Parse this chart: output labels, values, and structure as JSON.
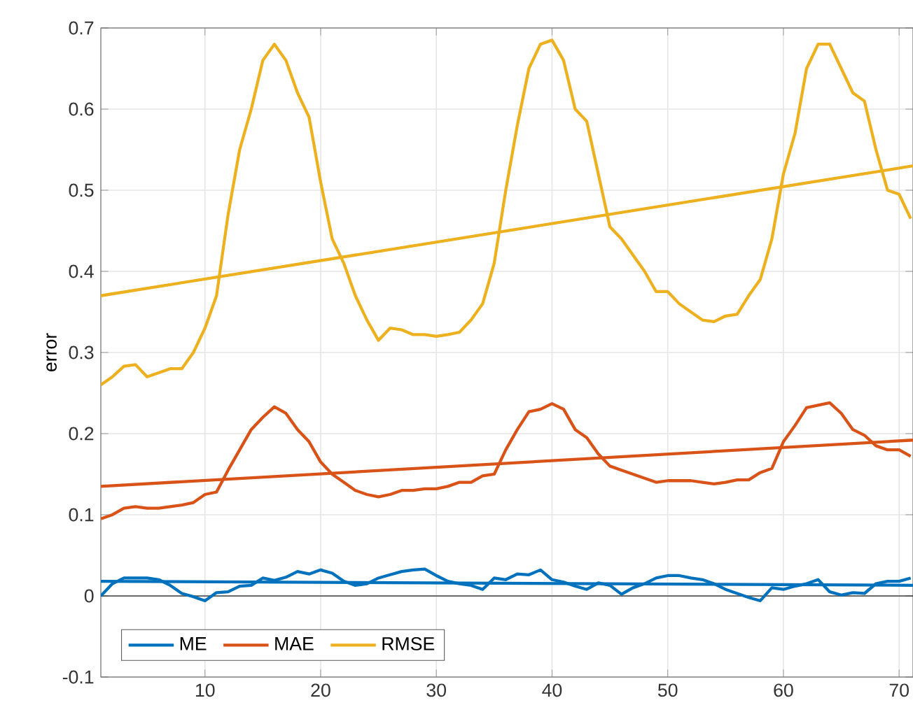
{
  "chart_data": {
    "type": "line",
    "ylabel": "error",
    "xlim": [
      1,
      71.2
    ],
    "ylim": [
      -0.1,
      0.7
    ],
    "xticks": [
      10,
      20,
      30,
      40,
      50,
      60,
      70
    ],
    "yticks": [
      -0.1,
      0,
      0.1,
      0.2,
      0.3,
      0.4,
      0.5,
      0.6,
      0.7
    ],
    "grid": true,
    "legend": "bottom left",
    "marker": "none",
    "line_style": "solid",
    "ref_lines": [
      {
        "axis": "y",
        "value": 0,
        "color": "#262626"
      }
    ],
    "series": [
      {
        "name": "ME",
        "color": "#0072bd",
        "x": [
          1,
          2,
          3,
          4,
          5,
          6,
          7,
          8,
          9,
          10,
          11,
          12,
          13,
          14,
          15,
          16,
          17,
          18,
          19,
          20,
          21,
          22,
          23,
          24,
          25,
          26,
          27,
          28,
          29,
          30,
          31,
          32,
          33,
          34,
          35,
          36,
          37,
          38,
          39,
          40,
          41,
          42,
          43,
          44,
          45,
          46,
          47,
          48,
          49,
          50,
          51,
          52,
          53,
          54,
          55,
          56,
          57,
          58,
          59,
          60,
          61,
          62,
          63,
          64,
          65,
          66,
          67,
          68,
          69,
          70,
          71
        ],
        "values": [
          0.0,
          0.015,
          0.022,
          0.022,
          0.022,
          0.02,
          0.013,
          0.003,
          -0.001,
          -0.006,
          0.004,
          0.005,
          0.012,
          0.013,
          0.022,
          0.019,
          0.023,
          0.03,
          0.027,
          0.032,
          0.028,
          0.018,
          0.013,
          0.015,
          0.022,
          0.026,
          0.03,
          0.032,
          0.033,
          0.025,
          0.018,
          0.015,
          0.013,
          0.008,
          0.022,
          0.02,
          0.027,
          0.026,
          0.032,
          0.02,
          0.017,
          0.012,
          0.008,
          0.016,
          0.013,
          0.002,
          0.01,
          0.015,
          0.022,
          0.025,
          0.025,
          0.022,
          0.02,
          0.015,
          0.008,
          0.003,
          -0.002,
          -0.006,
          0.01,
          0.008,
          0.012,
          0.015,
          0.02,
          0.005,
          0.001,
          0.004,
          0.003,
          0.015,
          0.018,
          0.018,
          0.022
        ]
      },
      {
        "name": "MAE",
        "color": "#d95319",
        "x": [
          1,
          2,
          3,
          4,
          5,
          6,
          7,
          8,
          9,
          10,
          11,
          12,
          13,
          14,
          15,
          16,
          17,
          18,
          19,
          20,
          21,
          22,
          23,
          24,
          25,
          26,
          27,
          28,
          29,
          30,
          31,
          32,
          33,
          34,
          35,
          36,
          37,
          38,
          39,
          40,
          41,
          42,
          43,
          44,
          45,
          46,
          47,
          48,
          49,
          50,
          51,
          52,
          53,
          54,
          55,
          56,
          57,
          58,
          59,
          60,
          61,
          62,
          63,
          64,
          65,
          66,
          67,
          68,
          69,
          70,
          71
        ],
        "values": [
          0.095,
          0.1,
          0.108,
          0.11,
          0.108,
          0.108,
          0.11,
          0.112,
          0.115,
          0.125,
          0.128,
          0.155,
          0.18,
          0.205,
          0.22,
          0.233,
          0.225,
          0.205,
          0.19,
          0.165,
          0.15,
          0.14,
          0.13,
          0.125,
          0.122,
          0.125,
          0.13,
          0.13,
          0.132,
          0.132,
          0.135,
          0.14,
          0.14,
          0.148,
          0.15,
          0.18,
          0.205,
          0.227,
          0.23,
          0.237,
          0.23,
          0.205,
          0.195,
          0.175,
          0.16,
          0.155,
          0.15,
          0.145,
          0.14,
          0.142,
          0.142,
          0.142,
          0.14,
          0.138,
          0.14,
          0.143,
          0.143,
          0.152,
          0.157,
          0.19,
          0.21,
          0.232,
          0.235,
          0.238,
          0.225,
          0.205,
          0.198,
          0.185,
          0.18,
          0.18,
          0.172
        ]
      },
      {
        "name": "RMSE",
        "color": "#edb120",
        "x": [
          1,
          2,
          3,
          4,
          5,
          6,
          7,
          8,
          9,
          10,
          11,
          12,
          13,
          14,
          15,
          16,
          17,
          18,
          19,
          20,
          21,
          22,
          23,
          24,
          25,
          26,
          27,
          28,
          29,
          30,
          31,
          32,
          33,
          34,
          35,
          36,
          37,
          38,
          39,
          40,
          41,
          42,
          43,
          44,
          45,
          46,
          47,
          48,
          49,
          50,
          51,
          52,
          53,
          54,
          55,
          56,
          57,
          58,
          59,
          60,
          61,
          62,
          63,
          64,
          65,
          66,
          67,
          68,
          69,
          70,
          71
        ],
        "values": [
          0.26,
          0.27,
          0.283,
          0.285,
          0.27,
          0.275,
          0.28,
          0.28,
          0.3,
          0.33,
          0.37,
          0.47,
          0.55,
          0.6,
          0.66,
          0.68,
          0.66,
          0.62,
          0.59,
          0.51,
          0.44,
          0.41,
          0.37,
          0.34,
          0.315,
          0.33,
          0.328,
          0.322,
          0.322,
          0.32,
          0.322,
          0.325,
          0.34,
          0.36,
          0.41,
          0.5,
          0.58,
          0.65,
          0.68,
          0.685,
          0.66,
          0.6,
          0.585,
          0.52,
          0.455,
          0.44,
          0.42,
          0.4,
          0.375,
          0.375,
          0.36,
          0.35,
          0.34,
          0.338,
          0.345,
          0.347,
          0.37,
          0.39,
          0.44,
          0.52,
          0.57,
          0.65,
          0.68,
          0.68,
          0.65,
          0.62,
          0.61,
          0.55,
          0.5,
          0.495,
          0.465
        ]
      },
      {
        "type": "line",
        "color": "#0072bd",
        "x": [
          1,
          71.2
        ],
        "values": [
          0.018,
          0.013
        ]
      },
      {
        "type": "line",
        "color": "#d95319",
        "x": [
          1,
          71.2
        ],
        "values": [
          0.135,
          0.192
        ]
      },
      {
        "type": "line",
        "color": "#edb120",
        "x": [
          1,
          71.2
        ],
        "values": [
          0.37,
          0.53
        ]
      }
    ]
  }
}
